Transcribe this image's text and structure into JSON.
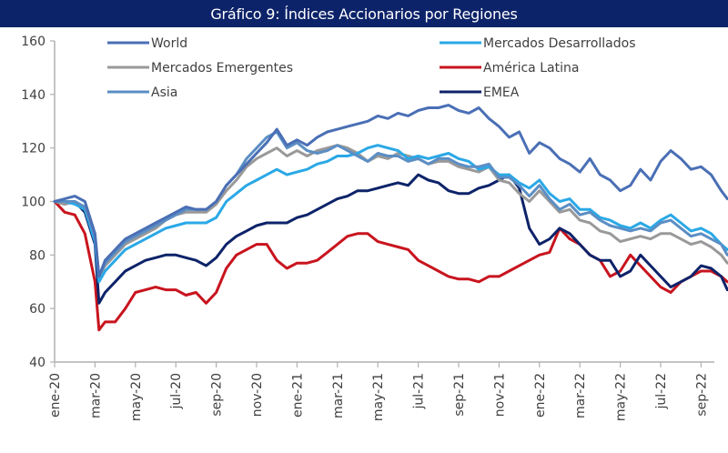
{
  "chart_data": {
    "type": "line",
    "title": "Gráfico 9: Índices Accionarios por Regiones",
    "xlabel": "",
    "ylabel": "",
    "ylim": [
      40,
      160
    ],
    "yticks": [
      40,
      60,
      80,
      100,
      120,
      140,
      160
    ],
    "grid": false,
    "legend_position": "top",
    "x_tick_labels": [
      "ene-20",
      "mar-20",
      "may-20",
      "jul-20",
      "sep-20",
      "nov-20",
      "ene-21",
      "mar-21",
      "may-21",
      "jul-21",
      "sep-21",
      "nov-21",
      "ene-22",
      "mar-22",
      "may-22",
      "jul-22",
      "sep-22"
    ],
    "x": [
      0,
      0.5,
      1,
      1.5,
      2,
      2.2,
      2.5,
      3,
      3.5,
      4,
      4.5,
      5,
      5.5,
      6,
      6.5,
      7,
      7.5,
      8,
      8.5,
      9,
      9.5,
      10,
      10.5,
      11,
      11.5,
      12,
      12.5,
      13,
      13.5,
      14,
      14.5,
      15,
      15.5,
      16,
      16.5,
      17,
      17.5,
      18,
      18.5,
      19,
      19.5,
      20,
      20.5,
      21,
      21.5,
      22,
      22.5,
      23,
      23.5,
      24,
      24.5,
      25,
      25.5,
      26,
      26.5,
      27,
      27.5,
      28,
      28.5,
      29,
      29.5,
      30,
      30.5,
      31,
      31.5,
      32,
      32.5,
      33,
      33.3
    ],
    "series": [
      {
        "name": "World",
        "color": "#4a6fb5",
        "values": [
          100,
          101,
          102,
          100,
          88,
          72,
          78,
          82,
          86,
          88,
          90,
          92,
          94,
          96,
          98,
          97,
          97,
          100,
          106,
          110,
          114,
          118,
          122,
          127,
          121,
          123,
          121,
          124,
          126,
          127,
          128,
          129,
          130,
          132,
          131,
          133,
          132,
          134,
          135,
          135,
          136,
          134,
          133,
          135,
          131,
          128,
          124,
          126,
          118,
          122,
          120,
          116,
          114,
          111,
          116,
          110,
          108,
          104,
          106,
          112,
          108,
          115,
          119,
          116,
          112,
          113,
          110,
          104,
          101
        ]
      },
      {
        "name": "Mercados Desarrollados",
        "color": "#2aa8e6",
        "values": [
          100,
          100,
          99,
          97,
          85,
          70,
          74,
          78,
          82,
          84,
          86,
          88,
          90,
          91,
          92,
          92,
          92,
          94,
          100,
          103,
          106,
          108,
          110,
          112,
          110,
          111,
          112,
          114,
          115,
          117,
          117,
          118,
          120,
          121,
          120,
          119,
          116,
          117,
          116,
          117,
          118,
          116,
          115,
          112,
          113,
          110,
          110,
          107,
          105,
          108,
          103,
          100,
          101,
          97,
          97,
          94,
          93,
          91,
          90,
          92,
          90,
          93,
          95,
          92,
          89,
          90,
          88,
          84,
          82
        ]
      },
      {
        "name": "Mercados Emergentes",
        "color": "#999999",
        "values": [
          100,
          99,
          100,
          97,
          86,
          72,
          76,
          80,
          84,
          86,
          88,
          90,
          93,
          95,
          96,
          96,
          96,
          99,
          104,
          108,
          113,
          116,
          118,
          120,
          117,
          119,
          117,
          119,
          120,
          121,
          120,
          118,
          115,
          117,
          116,
          118,
          117,
          116,
          114,
          115,
          115,
          113,
          112,
          111,
          113,
          108,
          107,
          103,
          100,
          104,
          100,
          96,
          97,
          93,
          92,
          89,
          88,
          85,
          86,
          87,
          86,
          88,
          88,
          86,
          84,
          85,
          83,
          80,
          77
        ]
      },
      {
        "name": "América Latina",
        "color": "#c8141e",
        "values": [
          100,
          96,
          95,
          88,
          70,
          52,
          55,
          55,
          60,
          66,
          67,
          68,
          67,
          67,
          65,
          66,
          62,
          66,
          75,
          80,
          82,
          84,
          84,
          78,
          75,
          77,
          77,
          78,
          81,
          84,
          87,
          88,
          88,
          85,
          84,
          83,
          82,
          78,
          76,
          74,
          72,
          71,
          71,
          70,
          72,
          72,
          74,
          76,
          78,
          80,
          81,
          90,
          86,
          84,
          80,
          78,
          72,
          74,
          80,
          76,
          72,
          68,
          66,
          70,
          72,
          74,
          74,
          72,
          70
        ]
      },
      {
        "name": "Asia",
        "color": "#5b8ec4",
        "values": [
          100,
          100,
          100,
          98,
          87,
          72,
          77,
          81,
          85,
          87,
          89,
          91,
          93,
          95,
          97,
          97,
          97,
          100,
          106,
          110,
          116,
          120,
          124,
          126,
          120,
          122,
          119,
          118,
          119,
          121,
          119,
          117,
          115,
          118,
          117,
          117,
          115,
          116,
          114,
          116,
          116,
          114,
          113,
          113,
          114,
          109,
          109,
          106,
          102,
          106,
          101,
          97,
          99,
          95,
          96,
          93,
          91,
          90,
          89,
          90,
          89,
          92,
          93,
          90,
          87,
          88,
          86,
          84,
          80
        ]
      },
      {
        "name": "EMEA",
        "color": "#0d2369",
        "values": [
          100,
          99,
          100,
          96,
          84,
          62,
          66,
          70,
          74,
          76,
          78,
          79,
          80,
          80,
          79,
          78,
          76,
          79,
          84,
          87,
          89,
          91,
          92,
          92,
          92,
          94,
          95,
          97,
          99,
          101,
          102,
          104,
          104,
          105,
          106,
          107,
          106,
          110,
          108,
          107,
          104,
          103,
          103,
          105,
          106,
          108,
          110,
          105,
          90,
          84,
          86,
          90,
          88,
          84,
          80,
          78,
          78,
          72,
          74,
          80,
          76,
          72,
          68,
          70,
          72,
          76,
          75,
          72,
          67
        ]
      }
    ]
  }
}
